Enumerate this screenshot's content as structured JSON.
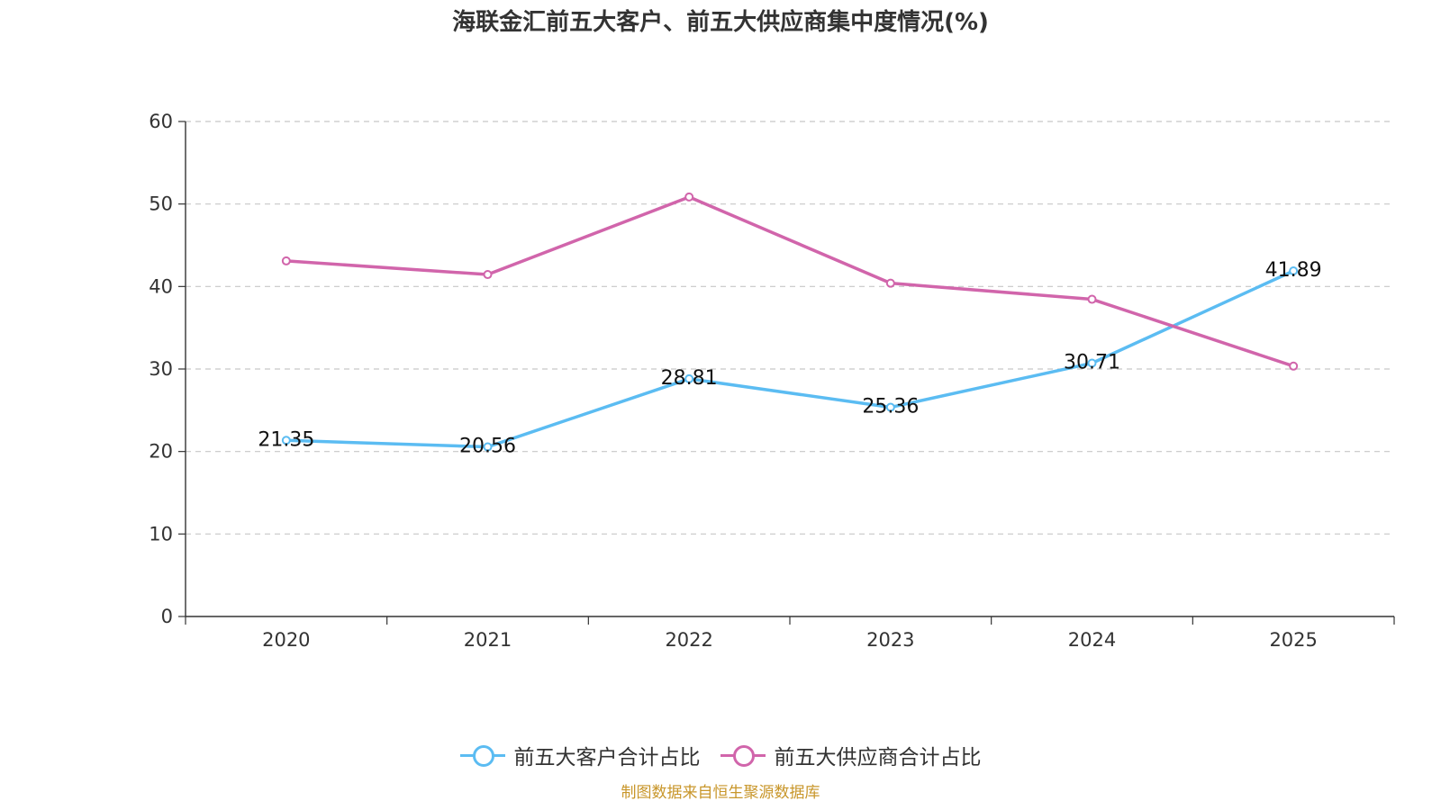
{
  "colors": {
    "customer": "#5bbcf2",
    "supplier": "#d165ab",
    "source": "#c8962a"
  },
  "chart_data": {
    "type": "line",
    "title": "海联金汇前五大客户、前五大供应商集中度情况(%)",
    "categories": [
      "2020",
      "2021",
      "2022",
      "2023",
      "2024",
      "2025"
    ],
    "ylim": [
      0,
      60
    ],
    "yticks": [
      0,
      10,
      20,
      30,
      40,
      50,
      60
    ],
    "grid": true,
    "legend_position": "bottom",
    "series": [
      {
        "name": "前五大客户合计占比",
        "values": [
          21.35,
          20.56,
          28.81,
          25.36,
          30.71,
          41.89
        ],
        "labels": [
          "21.35",
          "20.56",
          "28.81",
          "25.36",
          "30.71",
          "41.89"
        ],
        "show_labels": true
      },
      {
        "name": "前五大供应商合计占比",
        "values": [
          43.1,
          41.45,
          50.85,
          40.4,
          38.45,
          30.35
        ],
        "show_labels": false
      }
    ]
  },
  "source_text": "制图数据来自恒生聚源数据库"
}
